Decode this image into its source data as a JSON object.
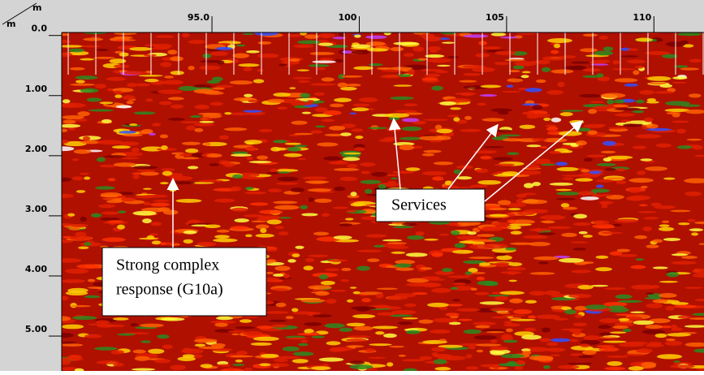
{
  "chart_data": {
    "type": "radargram",
    "x_unit": "m",
    "y_unit": "m",
    "xlim": [
      89.9,
      111.7
    ],
    "ylim": [
      -0.05,
      5.58
    ],
    "xticks": [
      {
        "value": 95,
        "label": "95.0"
      },
      100,
      105,
      110
    ],
    "yticks": [
      {
        "value": 0,
        "label": "0.0"
      },
      {
        "value": 1,
        "label": "1.00"
      },
      {
        "value": 2,
        "label": "2.00"
      },
      {
        "value": 3,
        "label": "3.00"
      },
      {
        "value": 4,
        "label": "4.00"
      },
      {
        "value": 5,
        "label": "5.00"
      }
    ],
    "annotations": [
      {
        "lines": [
          "Services"
        ]
      },
      {
        "lines": [
          "Strong  complex",
          "response (G10a)"
        ]
      }
    ]
  }
}
